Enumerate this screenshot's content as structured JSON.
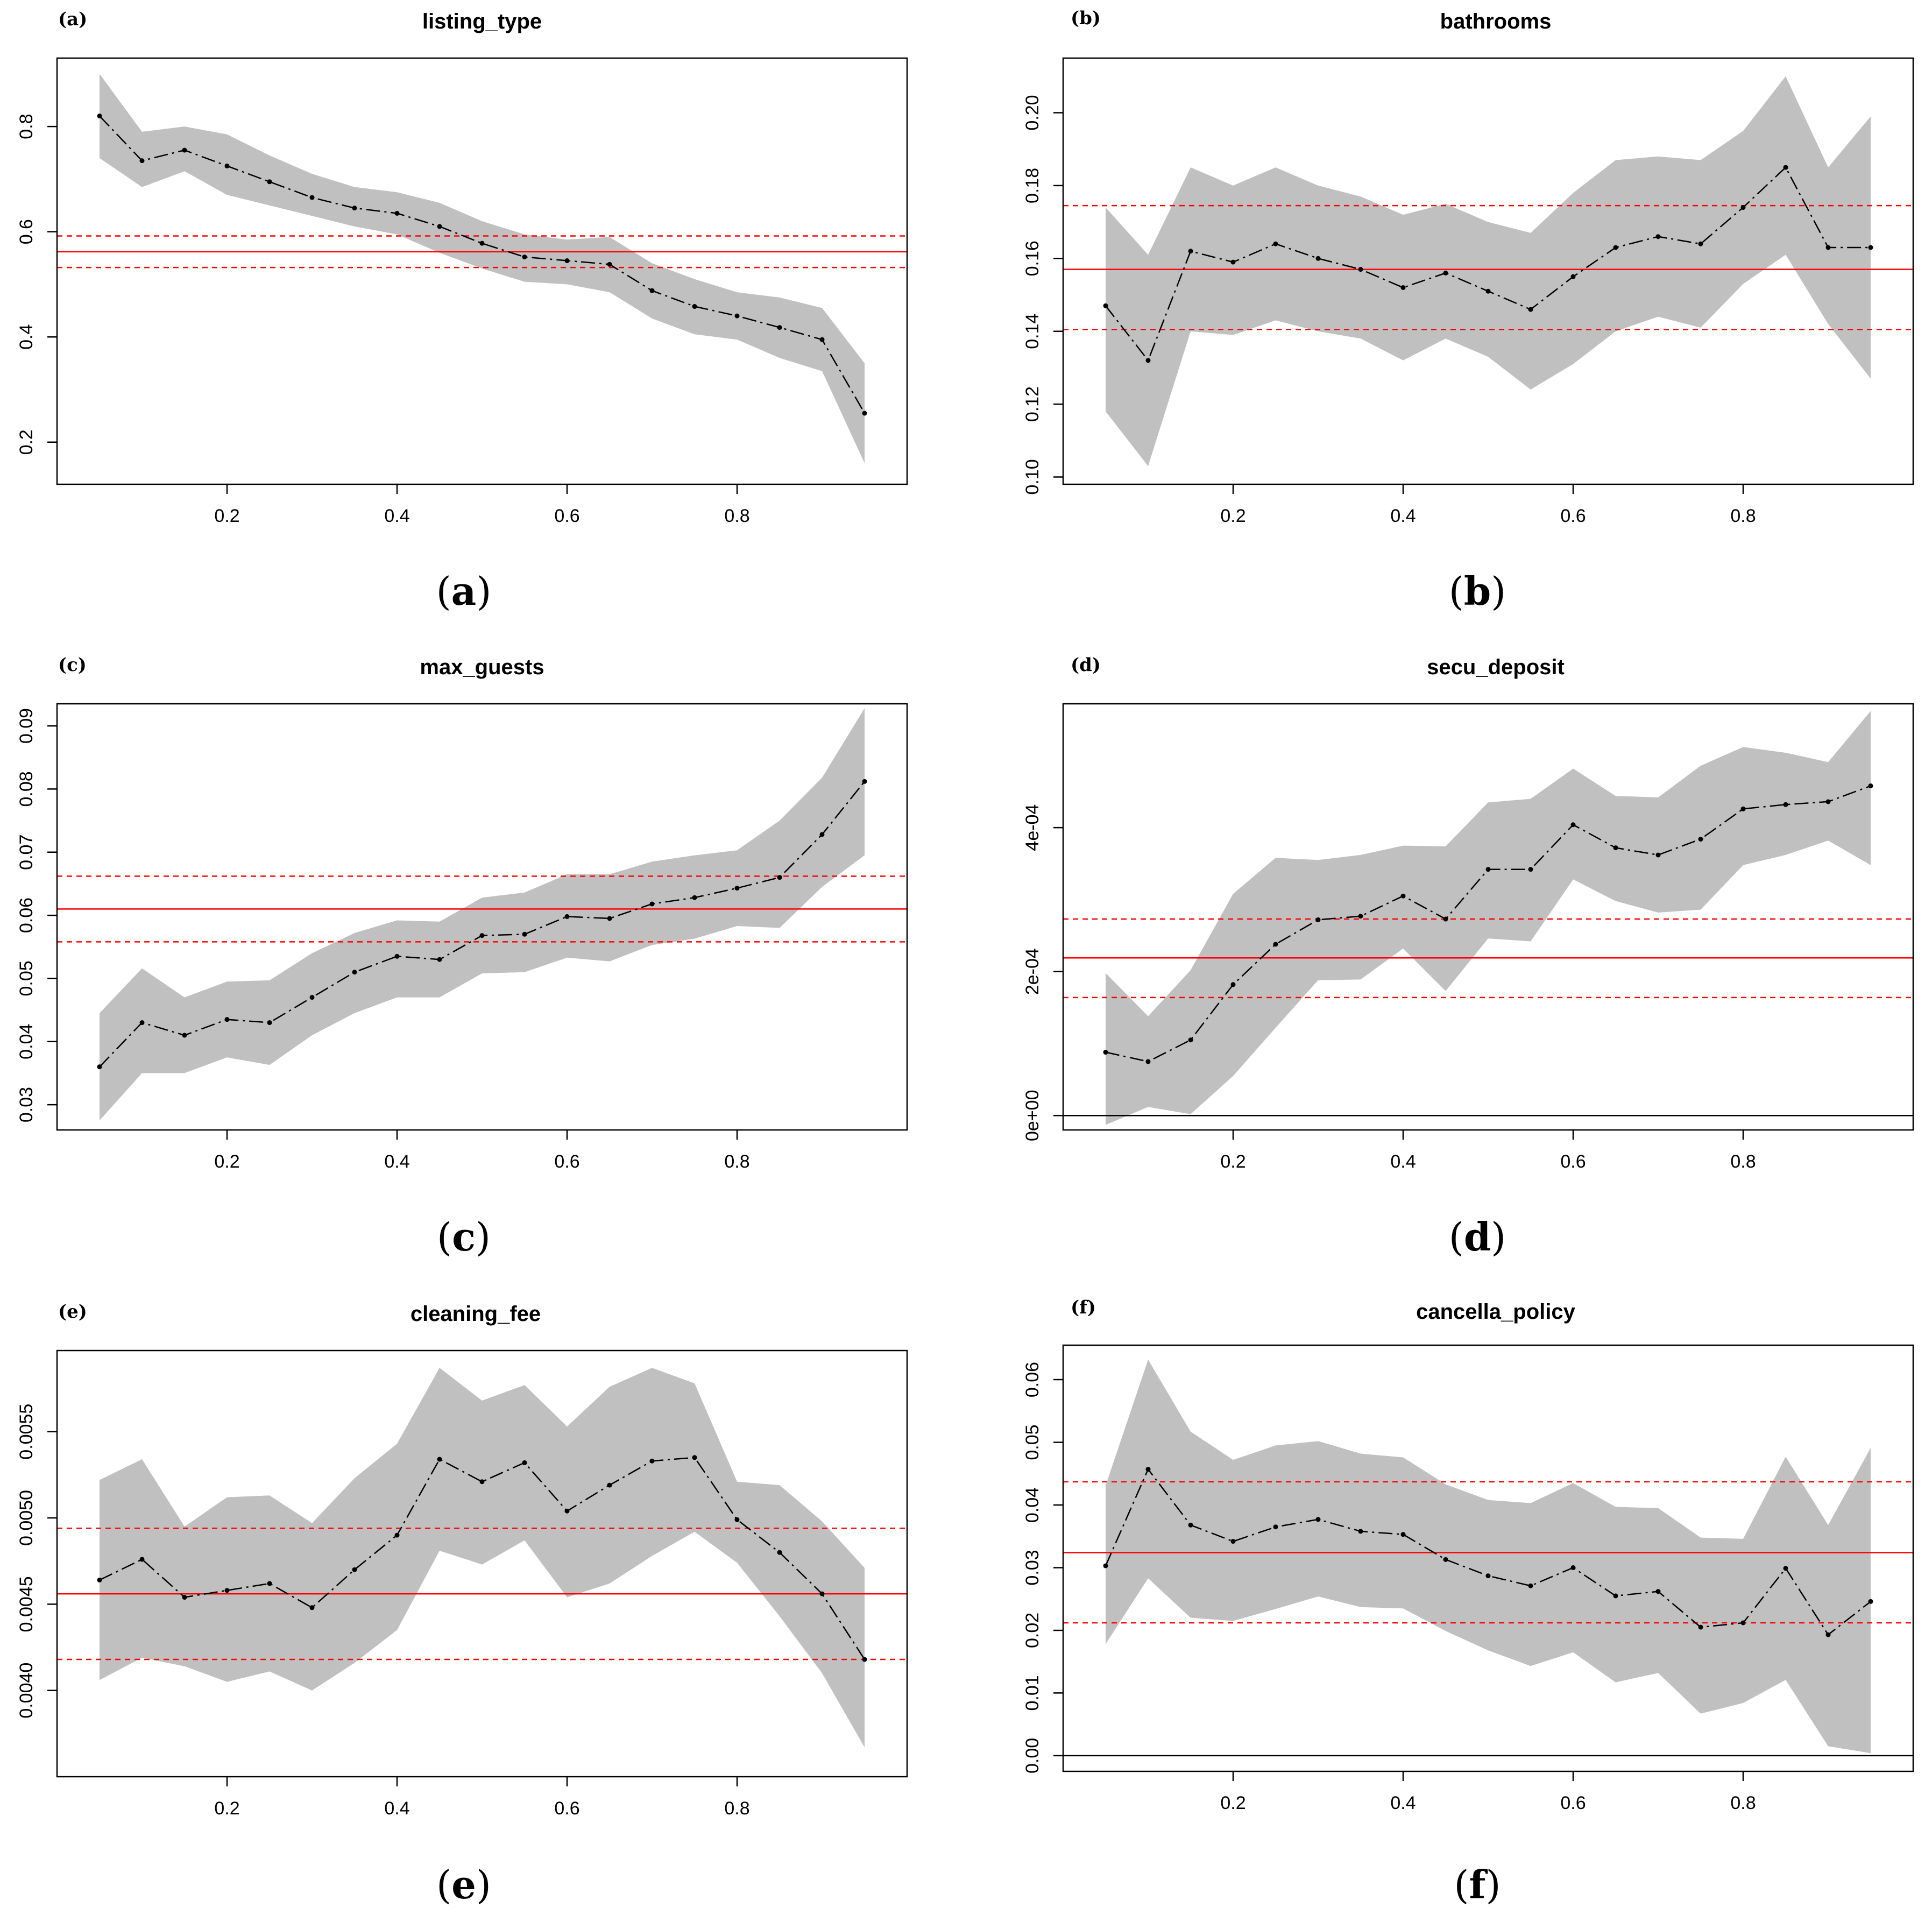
{
  "colors": {
    "band": "#c0c0c0",
    "ref_line": "#ff0000",
    "estimate": "#000000",
    "zero_line": "#000000"
  },
  "chart_data": [
    {
      "type": "line",
      "panel_tag": "(a)",
      "caption_letter": "a",
      "title": "listing_type",
      "xlabel": "",
      "ylabel": "",
      "x": [
        0.05,
        0.1,
        0.15,
        0.2,
        0.25,
        0.3,
        0.35,
        0.4,
        0.45,
        0.5,
        0.55,
        0.6,
        0.65,
        0.7,
        0.75,
        0.8,
        0.85,
        0.9,
        0.95
      ],
      "estimate": [
        0.82,
        0.735,
        0.755,
        0.725,
        0.695,
        0.665,
        0.645,
        0.635,
        0.61,
        0.578,
        0.552,
        0.545,
        0.538,
        0.488,
        0.458,
        0.44,
        0.418,
        0.395,
        0.255
      ],
      "lower": [
        0.74,
        0.685,
        0.715,
        0.67,
        0.65,
        0.63,
        0.61,
        0.595,
        0.56,
        0.53,
        0.505,
        0.5,
        0.485,
        0.435,
        0.405,
        0.395,
        0.36,
        0.335,
        0.16
      ],
      "upper": [
        0.9,
        0.79,
        0.8,
        0.785,
        0.745,
        0.71,
        0.685,
        0.675,
        0.655,
        0.62,
        0.595,
        0.585,
        0.59,
        0.54,
        0.51,
        0.485,
        0.475,
        0.455,
        0.35
      ],
      "ref_solid": 0.562,
      "ref_dashed": [
        0.532,
        0.592
      ],
      "zero_line": false,
      "xlim": [
        0.0,
        1.0
      ],
      "ylim": [
        0.12,
        0.93
      ],
      "xticks": [
        0.2,
        0.4,
        0.6,
        0.8
      ],
      "xtick_labels": [
        "0.2",
        "0.4",
        "0.6",
        "0.8"
      ],
      "yticks": [
        0.2,
        0.4,
        0.6,
        0.8
      ],
      "ytick_labels": [
        "0.2",
        "0.4",
        "0.6",
        "0.8"
      ]
    },
    {
      "type": "line",
      "panel_tag": "(b)",
      "caption_letter": "b",
      "title": "bathrooms",
      "xlabel": "",
      "ylabel": "",
      "x": [
        0.05,
        0.1,
        0.15,
        0.2,
        0.25,
        0.3,
        0.35,
        0.4,
        0.45,
        0.5,
        0.55,
        0.6,
        0.65,
        0.7,
        0.75,
        0.8,
        0.85,
        0.9,
        0.95
      ],
      "estimate": [
        0.147,
        0.132,
        0.162,
        0.159,
        0.164,
        0.16,
        0.157,
        0.152,
        0.156,
        0.151,
        0.146,
        0.155,
        0.163,
        0.166,
        0.164,
        0.174,
        0.185,
        0.163,
        0.163
      ],
      "lower": [
        0.118,
        0.103,
        0.14,
        0.139,
        0.143,
        0.14,
        0.138,
        0.132,
        0.138,
        0.133,
        0.124,
        0.131,
        0.14,
        0.144,
        0.141,
        0.153,
        0.161,
        0.142,
        0.127
      ],
      "upper": [
        0.174,
        0.161,
        0.185,
        0.18,
        0.185,
        0.18,
        0.177,
        0.172,
        0.175,
        0.17,
        0.167,
        0.178,
        0.187,
        0.188,
        0.187,
        0.195,
        0.21,
        0.185,
        0.199
      ],
      "ref_solid": 0.157,
      "ref_dashed": [
        0.1405,
        0.1745
      ],
      "zero_line": false,
      "xlim": [
        0.0,
        1.0
      ],
      "ylim": [
        0.098,
        0.215
      ],
      "xticks": [
        0.2,
        0.4,
        0.6,
        0.8
      ],
      "xtick_labels": [
        "0.2",
        "0.4",
        "0.6",
        "0.8"
      ],
      "yticks": [
        0.1,
        0.12,
        0.14,
        0.16,
        0.18,
        0.2
      ],
      "ytick_labels": [
        "0.10",
        "0.12",
        "0.14",
        "0.16",
        "0.18",
        "0.20"
      ]
    },
    {
      "type": "line",
      "panel_tag": "(c)",
      "caption_letter": "c",
      "title": "max_guests",
      "xlabel": "",
      "ylabel": "",
      "x": [
        0.05,
        0.1,
        0.15,
        0.2,
        0.25,
        0.3,
        0.35,
        0.4,
        0.45,
        0.5,
        0.55,
        0.6,
        0.65,
        0.7,
        0.75,
        0.8,
        0.85,
        0.9,
        0.95
      ],
      "estimate": [
        0.036,
        0.043,
        0.041,
        0.0435,
        0.043,
        0.047,
        0.051,
        0.0535,
        0.053,
        0.0568,
        0.057,
        0.0598,
        0.0595,
        0.0618,
        0.0628,
        0.0643,
        0.066,
        0.0728,
        0.0812
      ],
      "lower": [
        0.0275,
        0.035,
        0.035,
        0.0375,
        0.0363,
        0.041,
        0.0445,
        0.047,
        0.047,
        0.0508,
        0.051,
        0.0533,
        0.0527,
        0.0553,
        0.0563,
        0.0583,
        0.058,
        0.0645,
        0.0695
      ],
      "upper": [
        0.0445,
        0.0516,
        0.047,
        0.0495,
        0.0497,
        0.054,
        0.0572,
        0.0592,
        0.059,
        0.0628,
        0.0636,
        0.0665,
        0.0665,
        0.0685,
        0.0695,
        0.0703,
        0.075,
        0.0818,
        0.0928
      ],
      "ref_solid": 0.061,
      "ref_dashed": [
        0.0558,
        0.0662
      ],
      "zero_line": false,
      "xlim": [
        0.0,
        1.0
      ],
      "ylim": [
        0.026,
        0.0935
      ],
      "xticks": [
        0.2,
        0.4,
        0.6,
        0.8
      ],
      "xtick_labels": [
        "0.2",
        "0.4",
        "0.6",
        "0.8"
      ],
      "yticks": [
        0.03,
        0.04,
        0.05,
        0.06,
        0.07,
        0.08,
        0.09
      ],
      "ytick_labels": [
        "0.03",
        "0.04",
        "0.05",
        "0.06",
        "0.07",
        "0.08",
        "0.09"
      ]
    },
    {
      "type": "line",
      "panel_tag": "(d)",
      "caption_letter": "d",
      "title": "secu_deposit",
      "xlabel": "",
      "ylabel": "",
      "x": [
        0.05,
        0.1,
        0.15,
        0.2,
        0.25,
        0.3,
        0.35,
        0.4,
        0.45,
        0.5,
        0.55,
        0.6,
        0.65,
        0.7,
        0.75,
        0.8,
        0.85,
        0.9,
        0.95
      ],
      "estimate": [
        8.8e-05,
        7.5e-05,
        0.000105,
        0.000182,
        0.000238,
        0.000272,
        0.000277,
        0.000305,
        0.000273,
        0.000342,
        0.000342,
        0.000404,
        0.000372,
        0.000362,
        0.000384,
        0.000426,
        0.000432,
        0.000436,
        0.000458
      ],
      "lower": [
        -1.3e-05,
        1.2e-05,
        2e-06,
        5.5e-05,
        0.000122,
        0.000188,
        0.000189,
        0.000232,
        0.000173,
        0.000246,
        0.000242,
        0.000328,
        0.000298,
        0.000282,
        0.000286,
        0.000348,
        0.000362,
        0.000382,
        0.000348
      ],
      "upper": [
        0.000198,
        0.000138,
        0.000202,
        0.000308,
        0.000358,
        0.000355,
        0.000362,
        0.000375,
        0.000374,
        0.000435,
        0.00044,
        0.000482,
        0.000444,
        0.000442,
        0.000486,
        0.000512,
        0.000504,
        0.000491,
        0.000562
      ],
      "ref_solid": 0.000219,
      "ref_dashed": [
        0.000164,
        0.000273
      ],
      "zero_line": true,
      "xlim": [
        0.0,
        1.0
      ],
      "ylim": [
        -2e-05,
        0.000572
      ],
      "xticks": [
        0.2,
        0.4,
        0.6,
        0.8
      ],
      "xtick_labels": [
        "0.2",
        "0.4",
        "0.6",
        "0.8"
      ],
      "yticks": [
        0.0,
        0.0002,
        0.0004
      ],
      "ytick_labels": [
        "0e+00",
        "2e-04",
        "4e-04"
      ]
    },
    {
      "type": "line",
      "panel_tag": "(e)",
      "caption_letter": "e",
      "title": "cleaning_fee",
      "xlabel": "",
      "ylabel": "",
      "x": [
        0.05,
        0.1,
        0.15,
        0.2,
        0.25,
        0.3,
        0.35,
        0.4,
        0.45,
        0.5,
        0.55,
        0.6,
        0.65,
        0.7,
        0.75,
        0.8,
        0.85,
        0.9,
        0.95
      ],
      "estimate": [
        0.00464,
        0.00476,
        0.00454,
        0.00458,
        0.00462,
        0.00448,
        0.0047,
        0.0049,
        0.00534,
        0.00521,
        0.00532,
        0.00504,
        0.00519,
        0.00533,
        0.00535,
        0.00499,
        0.0048,
        0.00456,
        0.00418
      ],
      "lower": [
        0.00406,
        0.00419,
        0.00414,
        0.00405,
        0.00411,
        0.004,
        0.00416,
        0.00435,
        0.00481,
        0.00473,
        0.00487,
        0.00454,
        0.00462,
        0.00478,
        0.00492,
        0.00474,
        0.00443,
        0.0041,
        0.00367
      ],
      "upper": [
        0.00522,
        0.00534,
        0.00495,
        0.00512,
        0.00513,
        0.00497,
        0.00523,
        0.00543,
        0.00587,
        0.00568,
        0.00577,
        0.00553,
        0.00576,
        0.00587,
        0.00578,
        0.00521,
        0.00519,
        0.00498,
        0.00471
      ],
      "ref_solid": 0.00456,
      "ref_dashed": [
        0.00418,
        0.00494
      ],
      "zero_line": false,
      "xlim": [
        0.0,
        1.0
      ],
      "ylim": [
        0.0035,
        0.00597
      ],
      "xticks": [
        0.2,
        0.4,
        0.6,
        0.8
      ],
      "xtick_labels": [
        "0.2",
        "0.4",
        "0.6",
        "0.8"
      ],
      "yticks": [
        0.004,
        0.0045,
        0.005,
        0.0055
      ],
      "ytick_labels": [
        "0.0040",
        "0.0045",
        "0.0050",
        "0.0055"
      ]
    },
    {
      "type": "line",
      "panel_tag": "(f)",
      "caption_letter": "f",
      "title": "cancella_policy",
      "xlabel": "",
      "ylabel": "",
      "x": [
        0.05,
        0.1,
        0.15,
        0.2,
        0.25,
        0.3,
        0.35,
        0.4,
        0.45,
        0.5,
        0.55,
        0.6,
        0.65,
        0.7,
        0.75,
        0.8,
        0.85,
        0.9,
        0.95
      ],
      "estimate": [
        0.0303,
        0.0457,
        0.0368,
        0.0342,
        0.0365,
        0.0377,
        0.0358,
        0.0353,
        0.0313,
        0.0287,
        0.0271,
        0.03,
        0.0255,
        0.0262,
        0.0205,
        0.0212,
        0.0299,
        0.0193,
        0.0246
      ],
      "lower": [
        0.0178,
        0.0283,
        0.022,
        0.0215,
        0.0234,
        0.0254,
        0.0237,
        0.0235,
        0.0199,
        0.0168,
        0.0143,
        0.0165,
        0.0117,
        0.0132,
        0.0067,
        0.0084,
        0.0121,
        0.0015,
        0.0004
      ],
      "upper": [
        0.0431,
        0.0632,
        0.0517,
        0.0472,
        0.0495,
        0.0502,
        0.0482,
        0.0476,
        0.0433,
        0.0408,
        0.0403,
        0.0435,
        0.0397,
        0.0395,
        0.0348,
        0.0346,
        0.0477,
        0.0368,
        0.0491
      ],
      "ref_solid": 0.0324,
      "ref_dashed": [
        0.0212,
        0.0437
      ],
      "zero_line": true,
      "xlim": [
        0.0,
        1.0
      ],
      "ylim": [
        -0.0025,
        0.0655
      ],
      "xticks": [
        0.2,
        0.4,
        0.6,
        0.8
      ],
      "xtick_labels": [
        "0.2",
        "0.4",
        "0.6",
        "0.8"
      ],
      "yticks": [
        0.0,
        0.01,
        0.02,
        0.03,
        0.04,
        0.05,
        0.06
      ],
      "ytick_labels": [
        "0.00",
        "0.01",
        "0.02",
        "0.03",
        "0.04",
        "0.05",
        "0.06"
      ]
    }
  ]
}
